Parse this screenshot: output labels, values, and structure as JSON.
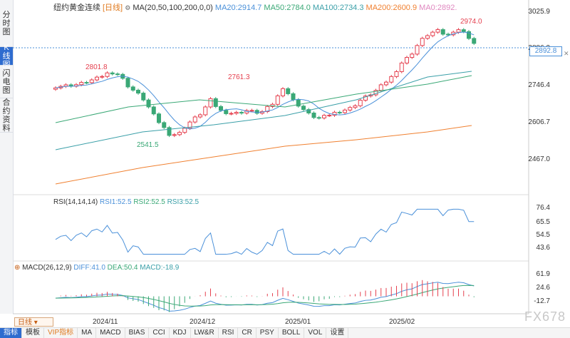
{
  "sidebar": {
    "tabs": [
      {
        "label": [
          "分",
          "时",
          "图"
        ]
      },
      {
        "label": [
          "K",
          "线",
          "图"
        ],
        "active": true
      },
      {
        "label": [
          "闪",
          "电",
          "图"
        ]
      },
      {
        "label": [
          "合",
          "约",
          "资",
          "料"
        ]
      }
    ]
  },
  "header": {
    "instrument": "纽约黄金连续",
    "period": "[日线]",
    "ma_label": "MA(20,50,100,200,0,0)",
    "ma": [
      {
        "t": "MA20:2914.7",
        "c": "#4a90d9"
      },
      {
        "t": "MA50:2784.0",
        "c": "#3aa876"
      },
      {
        "t": "MA100:2734.3",
        "c": "#3a9fa8"
      },
      {
        "t": "MA200:2600.9",
        "c": "#f08030"
      },
      {
        "t": "MA0:2892.",
        "c": "#e088c0"
      }
    ]
  },
  "price_axis": [
    "3025.9",
    "2886.2",
    "2746.4",
    "2606.7",
    "2467.0"
  ],
  "last_price": "2892.8",
  "annotations": {
    "high1": "2801.8",
    "low1": "2541.5",
    "high2": "2761.3",
    "high3": "2974.0"
  },
  "rsi": {
    "label": "RSI(14,14,14)",
    "v": [
      {
        "t": "RSI1:52.5",
        "c": "#4a90d9"
      },
      {
        "t": "RSI2:52.5",
        "c": "#3aa876"
      },
      {
        "t": "RSI3:52.5",
        "c": "#3a9fa8"
      }
    ],
    "axis": [
      "76.4",
      "65.5",
      "54.5",
      "43.6"
    ]
  },
  "macd": {
    "label": "MACD(26,12,9)",
    "v": [
      {
        "t": "DIFF:41.0",
        "c": "#4a90d9"
      },
      {
        "t": "DEA:50.4",
        "c": "#3aa876"
      },
      {
        "t": "MACD:-18.9",
        "c": "#3a9fa8"
      }
    ],
    "axis": [
      "61.9",
      "24.6",
      "-12.7"
    ]
  },
  "xaxis": [
    "2024/11",
    "2024/12",
    "2025/01",
    "2025/02"
  ],
  "period_button": "日线",
  "toolbar": [
    "指标",
    "模板",
    "VIP指标",
    "MA",
    "MACD",
    "BIAS",
    "CCI",
    "KDJ",
    "LW&R",
    "RSI",
    "CR",
    "PSY",
    "BOLL",
    "VOL",
    "设置"
  ],
  "watermark": "FX678",
  "colors": {
    "up": "#e5404f",
    "down": "#3aa876",
    "ma20": "#4a90d9",
    "ma50": "#3aa876",
    "ma100": "#3a9fa8",
    "ma200": "#f08030"
  }
}
